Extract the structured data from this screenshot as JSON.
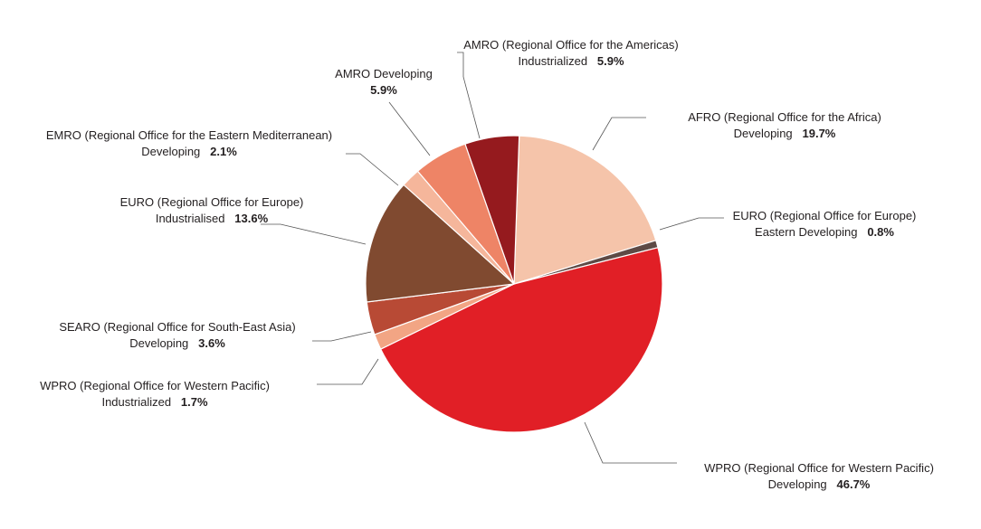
{
  "chart_data": {
    "type": "pie",
    "title": "",
    "slices": [
      {
        "line1": "AFRO (Regional Office for the Africa)",
        "line2": "Developing",
        "pct_label": "19.7%",
        "value": 19.7,
        "color": "#f5c4aa"
      },
      {
        "line1": "EURO (Regional Office for Europe)",
        "line2": "Eastern Developing",
        "pct_label": "0.8%",
        "value": 0.8,
        "color": "#5e4a45"
      },
      {
        "line1": "WPRO (Regional Office for Western Pacific)",
        "line2": "Developing",
        "pct_label": "46.7%",
        "value": 46.7,
        "color": "#e11f26"
      },
      {
        "line1": "WPRO (Regional Office for Western Pacific)",
        "line2": "Industrialized",
        "pct_label": "1.7%",
        "value": 1.7,
        "color": "#f2a584"
      },
      {
        "line1": "SEARO (Regional Office for South-East Asia)",
        "line2": "Developing",
        "pct_label": "3.6%",
        "value": 3.6,
        "color": "#b84a35"
      },
      {
        "line1": "EURO (Regional Office for Europe)",
        "line2": "Industrialised",
        "pct_label": "13.6%",
        "value": 13.6,
        "color": "#804a30"
      },
      {
        "line1": "EMRO (Regional Office for the Eastern Mediterranean)",
        "line2": "Developing",
        "pct_label": "2.1%",
        "value": 2.1,
        "color": "#f5b69b"
      },
      {
        "line1": "AMRO Developing",
        "line2": "",
        "pct_label": "5.9%",
        "value": 5.9,
        "color": "#ee8466"
      },
      {
        "line1": "AMRO (Regional Office for the Americas)",
        "line2": "Industrialized",
        "pct_label": "5.9%",
        "value": 5.9,
        "color": "#951a1e"
      }
    ]
  }
}
